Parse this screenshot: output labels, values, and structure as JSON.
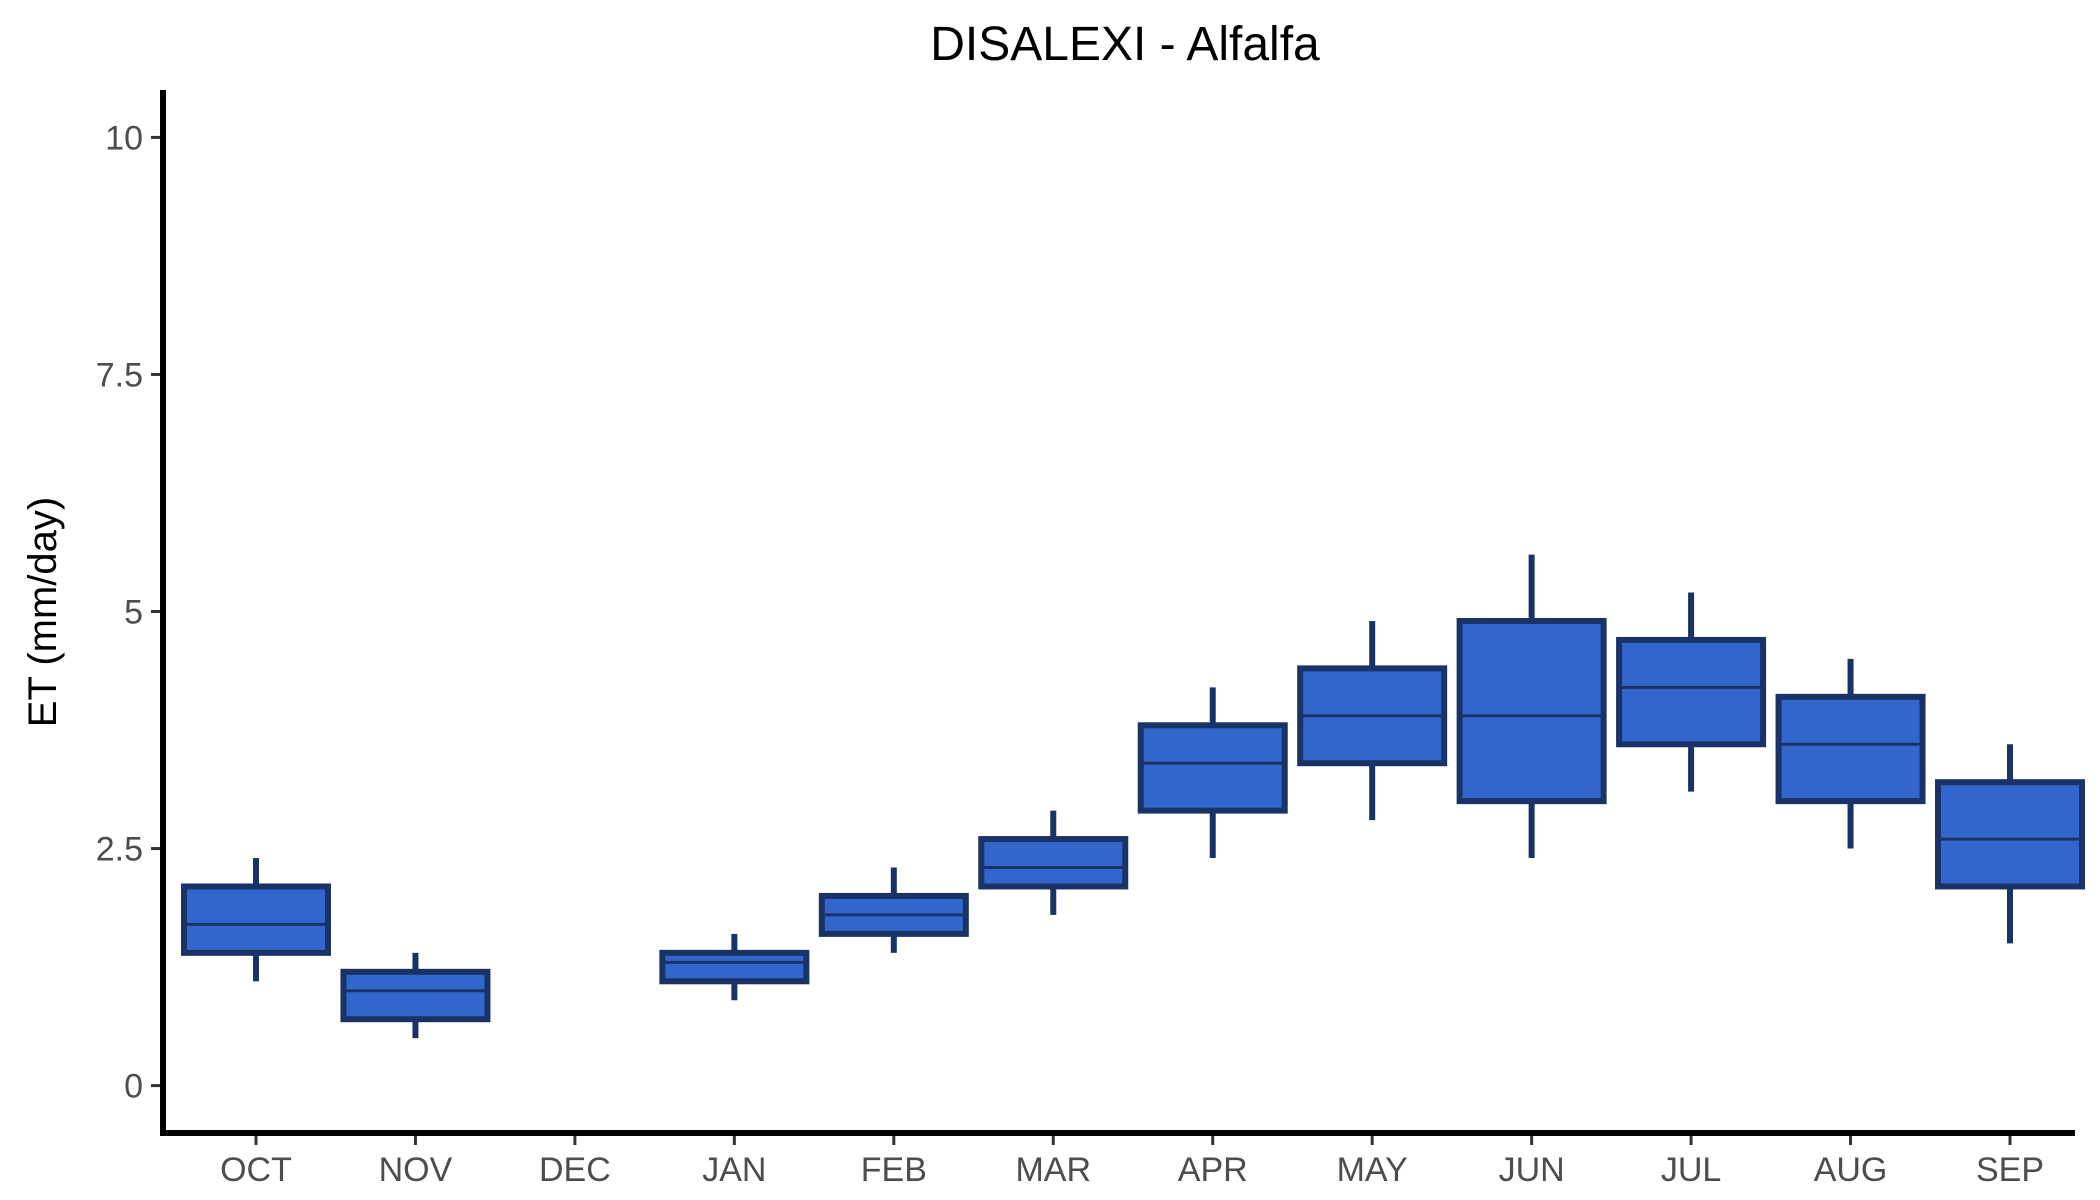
{
  "chart_data": {
    "type": "boxplot",
    "title": "DISALEXI - Alfalfa",
    "xlabel": "",
    "ylabel": "ET (mm/day)",
    "ylim": [
      -0.5,
      10.5
    ],
    "yticks": [
      0,
      2.5,
      5,
      7.5,
      10
    ],
    "ytick_labels": [
      "0",
      "2.5",
      "5",
      "7.5",
      "10"
    ],
    "categories": [
      "OCT",
      "NOV",
      "DEC",
      "JAN",
      "FEB",
      "MAR",
      "APR",
      "MAY",
      "JUN",
      "JUL",
      "AUG",
      "SEP"
    ],
    "boxes": [
      {
        "category": "OCT",
        "low": 1.1,
        "q1": 1.4,
        "median": 1.7,
        "q3": 2.1,
        "high": 2.4
      },
      {
        "category": "NOV",
        "low": 0.5,
        "q1": 0.7,
        "median": 1.0,
        "q3": 1.2,
        "high": 1.4
      },
      {
        "category": "DEC"
      },
      {
        "category": "JAN",
        "low": 0.9,
        "q1": 1.1,
        "median": 1.3,
        "q3": 1.4,
        "high": 1.6
      },
      {
        "category": "FEB",
        "low": 1.4,
        "q1": 1.6,
        "median": 1.8,
        "q3": 2.0,
        "high": 2.3
      },
      {
        "category": "MAR",
        "low": 1.8,
        "q1": 2.1,
        "median": 2.3,
        "q3": 2.6,
        "high": 2.9
      },
      {
        "category": "APR",
        "low": 2.4,
        "q1": 2.9,
        "median": 3.4,
        "q3": 3.8,
        "high": 4.2
      },
      {
        "category": "MAY",
        "low": 2.8,
        "q1": 3.4,
        "median": 3.9,
        "q3": 4.4,
        "high": 4.9
      },
      {
        "category": "JUN",
        "low": 2.4,
        "q1": 3.0,
        "median": 3.9,
        "q3": 4.9,
        "high": 5.6
      },
      {
        "category": "JUL",
        "low": 3.1,
        "q1": 3.6,
        "median": 4.2,
        "q3": 4.7,
        "high": 5.2
      },
      {
        "category": "AUG",
        "low": 2.5,
        "q1": 3.0,
        "median": 3.6,
        "q3": 4.1,
        "high": 4.5
      },
      {
        "category": "SEP",
        "low": 1.5,
        "q1": 2.1,
        "median": 2.6,
        "q3": 3.2,
        "high": 3.6
      }
    ],
    "colors": {
      "box_fill": "#3366cc",
      "box_stroke": "#1a3366"
    },
    "grid": false,
    "legend": "none"
  }
}
